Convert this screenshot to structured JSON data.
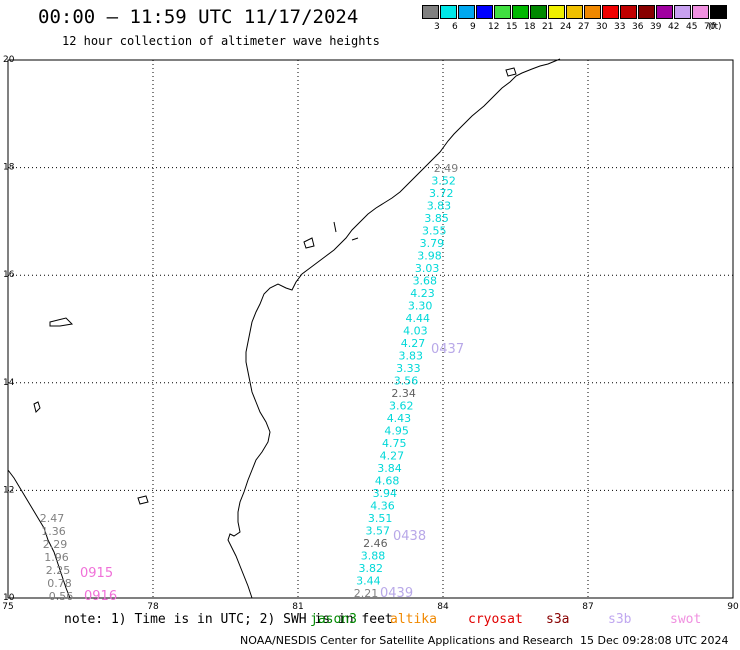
{
  "header": {
    "title": "00:00 – 11:59 UTC 11/17/2024",
    "subtitle": "12 hour collection of altimeter wave heights"
  },
  "colorbar": {
    "unit": "(ft)",
    "items": [
      {
        "label": "3",
        "color": "#808080"
      },
      {
        "label": "6",
        "color": "#00e8e8"
      },
      {
        "label": "9",
        "color": "#00a8f0"
      },
      {
        "label": "12",
        "color": "#0000ff"
      },
      {
        "label": "15",
        "color": "#40e040"
      },
      {
        "label": "18",
        "color": "#00b800"
      },
      {
        "label": "21",
        "color": "#008800"
      },
      {
        "label": "24",
        "color": "#f0f000"
      },
      {
        "label": "27",
        "color": "#f0c000"
      },
      {
        "label": "30",
        "color": "#f08800"
      },
      {
        "label": "33",
        "color": "#f00000"
      },
      {
        "label": "36",
        "color": "#c00000"
      },
      {
        "label": "39",
        "color": "#880000"
      },
      {
        "label": "42",
        "color": "#a000a0"
      },
      {
        "label": "45",
        "color": "#c8a0f0"
      },
      {
        "label": "70",
        "color": "#f090e0"
      },
      {
        "label": "",
        "color": "#000000"
      }
    ]
  },
  "map": {
    "lon_labels": [
      "75",
      "78",
      "81",
      "84",
      "87",
      "90"
    ],
    "lat_labels": [
      "20",
      "18",
      "16",
      "14",
      "12",
      "10"
    ],
    "lon_range": [
      75,
      90
    ],
    "lat_range": [
      10,
      20
    ]
  },
  "passes": [
    {
      "label": "0437",
      "color": "#b8a8e8"
    },
    {
      "label": "0438",
      "color": "#b8a8e8"
    },
    {
      "label": "0439",
      "color": "#b8a8e8"
    },
    {
      "label": "0915",
      "color": "#f070d8"
    },
    {
      "label": "0916",
      "color": "#f070d8"
    }
  ],
  "track_values": [
    {
      "v": "2.49",
      "c": "#808080"
    },
    {
      "v": "3.52",
      "c": "#00d8d8"
    },
    {
      "v": "3.72",
      "c": "#00d8d8"
    },
    {
      "v": "3.83",
      "c": "#00d8d8"
    },
    {
      "v": "3.85",
      "c": "#00d8d8"
    },
    {
      "v": "3.55",
      "c": "#00d8d8"
    },
    {
      "v": "3.79",
      "c": "#00d8d8"
    },
    {
      "v": "3.98",
      "c": "#00d8d8"
    },
    {
      "v": "3.03",
      "c": "#00d8d8"
    },
    {
      "v": "3.68",
      "c": "#00d8d8"
    },
    {
      "v": "4.23",
      "c": "#00d8d8"
    },
    {
      "v": "3.30",
      "c": "#00d8d8"
    },
    {
      "v": "4.44",
      "c": "#00d8d8"
    },
    {
      "v": "4.03",
      "c": "#00d8d8"
    },
    {
      "v": "4.27",
      "c": "#00d8d8"
    },
    {
      "v": "3.83",
      "c": "#00d8d8"
    },
    {
      "v": "3.33",
      "c": "#00d8d8"
    },
    {
      "v": "3.56",
      "c": "#00d8d8"
    },
    {
      "v": "2.34",
      "c": "#606060"
    },
    {
      "v": "3.62",
      "c": "#00d8d8"
    },
    {
      "v": "4.43",
      "c": "#00d8d8"
    },
    {
      "v": "4.95",
      "c": "#00d8d8"
    },
    {
      "v": "4.75",
      "c": "#00d8d8"
    },
    {
      "v": "4.27",
      "c": "#00d8d8"
    },
    {
      "v": "3.84",
      "c": "#00d8d8"
    },
    {
      "v": "4.68",
      "c": "#00d8d8"
    },
    {
      "v": "3.94",
      "c": "#00d8d8"
    },
    {
      "v": "4.36",
      "c": "#00d8d8"
    },
    {
      "v": "3.51",
      "c": "#00d8d8"
    },
    {
      "v": "3.57",
      "c": "#00d8d8"
    },
    {
      "v": "2.46",
      "c": "#606060"
    },
    {
      "v": "3.88",
      "c": "#00d8d8"
    },
    {
      "v": "3.82",
      "c": "#00d8d8"
    },
    {
      "v": "3.44",
      "c": "#00d8d8"
    },
    {
      "v": "2.21",
      "c": "#808080"
    }
  ],
  "left_track_values": [
    {
      "v": "2.47",
      "c": "#808080"
    },
    {
      "v": "1.36",
      "c": "#808080"
    },
    {
      "v": "2.29",
      "c": "#808080"
    },
    {
      "v": "1.96",
      "c": "#808080"
    },
    {
      "v": "2.25",
      "c": "#808080"
    },
    {
      "v": "0.78",
      "c": "#808080"
    },
    {
      "v": "0.56",
      "c": "#808080"
    }
  ],
  "footer": {
    "note": "note: 1) Time is in UTC; 2) SWH is in feet",
    "satellites": [
      {
        "name": "jason3",
        "color": "#008800"
      },
      {
        "name": "altika",
        "color": "#f08800"
      },
      {
        "name": "cryosat",
        "color": "#e00000"
      },
      {
        "name": "s3a",
        "color": "#880000"
      },
      {
        "name": "s3b",
        "color": "#c0a8f0"
      },
      {
        "name": "swot",
        "color": "#f090e0"
      }
    ],
    "credit": "NOAA/NESDIS Center for Satellite Applications and Research",
    "timestamp": "15 Dec 09:28:08 UTC 2024"
  }
}
